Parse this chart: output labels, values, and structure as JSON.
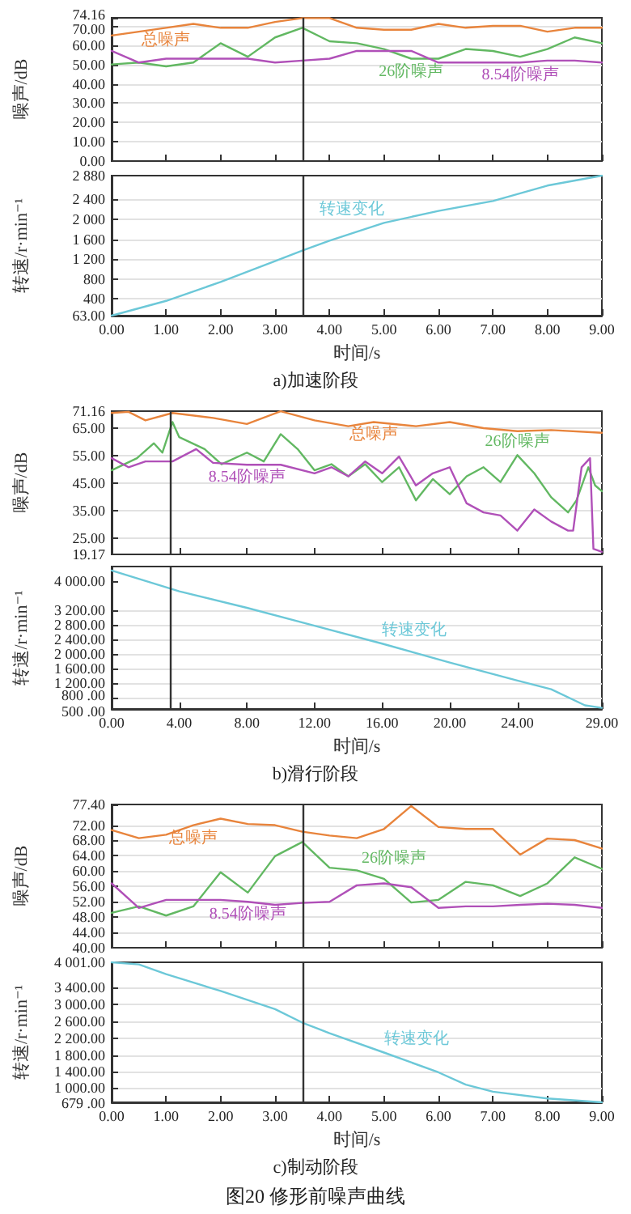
{
  "chart_data": [
    {
      "type": "line",
      "ylabel": "噪声/dB",
      "x": [
        0,
        0.5,
        1,
        1.5,
        2,
        2.5,
        3,
        3.5,
        4,
        4.5,
        5,
        5.5,
        6,
        6.5,
        7,
        7.5,
        8,
        8.5,
        9
      ],
      "xlim": [
        0,
        9
      ],
      "xticks": [
        0,
        1,
        2,
        3,
        4,
        5,
        6,
        7,
        8,
        9
      ],
      "ylim": [
        0,
        74.16
      ],
      "yticks": [
        {
          "value": 0,
          "label": "0.00"
        },
        {
          "value": 10,
          "label": "10.00"
        },
        {
          "value": 20,
          "label": "20.00"
        },
        {
          "value": 30,
          "label": "30.00"
        },
        {
          "value": 40,
          "label": "40.00"
        },
        {
          "value": 50,
          "label": "50.00"
        },
        {
          "value": 60,
          "label": "60.00"
        },
        {
          "value": 70,
          "label": "70.00"
        },
        74.16
      ],
      "tick_labels": "y",
      "grid": "y",
      "ref_lines": [
        {
          "axis": "x",
          "value": 3.5,
          "color": "#333333"
        }
      ],
      "series": [
        {
          "name": "总噪声",
          "color": "#e8843c",
          "values": [
            65,
            67,
            69,
            71,
            69,
            69,
            72,
            74,
            74,
            69,
            68,
            68,
            71,
            69,
            70,
            70,
            67,
            69,
            69
          ]
        },
        {
          "name": "26阶噪声",
          "color": "#62b862",
          "values": [
            50,
            51,
            49,
            51,
            61,
            54,
            64,
            69,
            62,
            61,
            58,
            53,
            53,
            58,
            57,
            54,
            58,
            64,
            61
          ]
        },
        {
          "name": "8.54阶噪声",
          "color": "#b050b8",
          "values": [
            57,
            51,
            53,
            53,
            53,
            53,
            51,
            52,
            53,
            57,
            57,
            57,
            51,
            51,
            51,
            51,
            52,
            52,
            51
          ]
        }
      ]
    },
    {
      "type": "line",
      "xlabel": "时间/s",
      "ylabel": "转速/r·min⁻¹",
      "x": [
        0,
        1,
        2,
        3,
        3.5,
        4,
        5,
        6,
        7,
        8,
        9
      ],
      "xlim": [
        0,
        9
      ],
      "xticks": [
        {
          "value": 0,
          "label": "0.00"
        },
        {
          "value": 1,
          "label": "1.00"
        },
        {
          "value": 2,
          "label": "2.00"
        },
        {
          "value": 3,
          "label": "3.00"
        },
        {
          "value": 4,
          "label": "4.00"
        },
        {
          "value": 5,
          "label": "5.00"
        },
        {
          "value": 6,
          "label": "6.00"
        },
        {
          "value": 7,
          "label": "7.00"
        },
        {
          "value": 8,
          "label": "8.00"
        },
        {
          "value": 9,
          "label": "9.00"
        }
      ],
      "ylim": [
        63,
        2880
      ],
      "yticks": [
        {
          "value": 63,
          "label": "63.00"
        },
        400,
        800,
        {
          "value": 1200,
          "label": "1 200"
        },
        {
          "value": 1600,
          "label": "1 600"
        },
        {
          "value": 2000,
          "label": "2 000"
        },
        {
          "value": 2400,
          "label": "2 400"
        },
        {
          "value": 2880,
          "label": "2 880"
        }
      ],
      "grid": "y",
      "ref_lines": [
        {
          "axis": "x",
          "value": 3.5,
          "color": "#333333"
        }
      ],
      "annotations": [
        "a)加速阶段"
      ],
      "series": [
        {
          "name": "转速变化",
          "color": "#6cc8d8",
          "values": [
            63,
            360,
            740,
            1160,
            1370,
            1570,
            1930,
            2170,
            2370,
            2680,
            2880
          ]
        }
      ]
    },
    {
      "type": "line",
      "ylabel": "噪声/dB",
      "xlim": [
        0,
        29
      ],
      "xticks": [
        0,
        4,
        8,
        12,
        16,
        20,
        24,
        29
      ],
      "ylim": [
        19.17,
        71.16
      ],
      "yticks": [
        19.17,
        {
          "value": 25,
          "label": "25.00"
        },
        {
          "value": 35,
          "label": "35.00"
        },
        {
          "value": 45,
          "label": "45.00"
        },
        {
          "value": 55,
          "label": "55.00"
        },
        {
          "value": 65,
          "label": "65.00"
        },
        71.16
      ],
      "tick_labels": "y",
      "grid": "y",
      "ref_lines": [
        {
          "axis": "x",
          "value": 3.5,
          "color": "#333333"
        }
      ],
      "series": [
        {
          "name": "总噪声",
          "color": "#e8843c",
          "x": [
            0,
            1,
            2,
            3.6,
            6,
            8,
            10,
            12,
            14,
            15.5,
            18,
            20,
            22,
            24,
            26,
            29
          ],
          "values": [
            70.5,
            70.9,
            67.8,
            70.5,
            68.7,
            66.5,
            71.1,
            67.8,
            65.7,
            67.2,
            65.7,
            67.2,
            65,
            63.9,
            64.3,
            63.3
          ]
        },
        {
          "name": "26阶噪声",
          "color": "#62b862",
          "x": [
            0,
            1.5,
            2.5,
            3,
            3.6,
            4,
            5.5,
            6.5,
            8,
            9,
            10,
            11,
            12,
            13,
            14,
            15,
            16,
            17,
            18,
            19,
            20,
            21,
            22,
            23,
            24,
            25,
            26,
            27,
            27.5,
            28.2,
            28.6,
            29
          ],
          "values": [
            49.7,
            54.1,
            59.5,
            56.1,
            67.2,
            61.7,
            57.4,
            51.9,
            56.1,
            52.9,
            62.8,
            57.4,
            49.7,
            51.9,
            47.5,
            51.9,
            45.4,
            50.8,
            38.8,
            46.5,
            41,
            47.5,
            50.8,
            45.4,
            55.2,
            48.6,
            39.9,
            34.4,
            38.8,
            50.8,
            44.2,
            42.1
          ]
        },
        {
          "name": "8.54阶噪声",
          "color": "#b050b8",
          "x": [
            0,
            1,
            2,
            3.6,
            5,
            6,
            8,
            10,
            12,
            13,
            14,
            15,
            16,
            17,
            18,
            19,
            20,
            21,
            22,
            23,
            24,
            25,
            26,
            27,
            27.3,
            27.8,
            28.3,
            28.5,
            29
          ],
          "values": [
            54.1,
            50.8,
            52.9,
            52.9,
            57.4,
            52.4,
            51.7,
            51.7,
            48.6,
            50.8,
            47.5,
            52.9,
            48.6,
            54.7,
            44.2,
            48.6,
            50.8,
            37.7,
            34.4,
            33.3,
            27.8,
            35.5,
            31.1,
            27.8,
            27.8,
            50.8,
            54.1,
            21.2,
            20.1
          ]
        }
      ]
    },
    {
      "type": "line",
      "xlabel": "时间/s",
      "ylabel": "转速/r·min⁻¹",
      "x": [
        0,
        4,
        8,
        12,
        16,
        20,
        24,
        26,
        28,
        29
      ],
      "xlim": [
        0,
        29
      ],
      "xticks": [
        {
          "value": 0,
          "label": "0.00"
        },
        {
          "value": 4,
          "label": "4.00"
        },
        {
          "value": 8,
          "label": "8.00"
        },
        {
          "value": 12,
          "label": "12.00"
        },
        {
          "value": 16,
          "label": "16.00"
        },
        {
          "value": 20,
          "label": "20.00"
        },
        {
          "value": 24,
          "label": "24.00"
        },
        {
          "value": 29,
          "label": "29.00"
        }
      ],
      "ylim": [
        500,
        4400
      ],
      "yticks": [
        {
          "value": 500,
          "label": "500 .00"
        },
        {
          "value": 800,
          "label": "800 .00"
        },
        {
          "value": 1200,
          "label": "1 200.00"
        },
        {
          "value": 1600,
          "label": "1 600.00"
        },
        {
          "value": 2000,
          "label": "2 000.00"
        },
        {
          "value": 2400,
          "label": "2 400.00"
        },
        {
          "value": 2800,
          "label": "2 800.00"
        },
        {
          "value": 3200,
          "label": "3 200.00"
        },
        {
          "value": 4000,
          "label": "4 000.00"
        }
      ],
      "grid": "y",
      "ref_lines": [
        {
          "axis": "x",
          "value": 3.5,
          "color": "#333333"
        }
      ],
      "annotations": [
        "b)滑行阶段"
      ],
      "series": [
        {
          "name": "转速变化",
          "color": "#6cc8d8",
          "values": [
            4290,
            3720,
            3270,
            2780,
            2290,
            1770,
            1280,
            1040,
            600,
            530
          ]
        }
      ]
    },
    {
      "type": "line",
      "ylabel": "噪声/dB",
      "x": [
        0,
        0.5,
        1,
        1.5,
        2,
        2.5,
        3,
        3.5,
        4,
        4.5,
        5,
        5.5,
        6,
        6.5,
        7,
        7.5,
        8,
        8.5,
        9
      ],
      "xlim": [
        0,
        9
      ],
      "xticks": [
        0,
        1,
        2,
        3,
        4,
        5,
        6,
        7,
        8,
        9
      ],
      "ylim": [
        40,
        77.4
      ],
      "yticks": [
        {
          "value": 40,
          "label": "40.00"
        },
        {
          "value": 44,
          "label": "44.00"
        },
        {
          "value": 48,
          "label": "48.00"
        },
        {
          "value": 52,
          "label": "52.00"
        },
        {
          "value": 56,
          "label": "56.00"
        },
        {
          "value": 60,
          "label": "60.00"
        },
        {
          "value": 64,
          "label": "64.00"
        },
        {
          "value": 68,
          "label": "68.00"
        },
        {
          "value": 72,
          "label": "72.00"
        },
        {
          "value": 77.4,
          "label": "77.40"
        }
      ],
      "tick_labels": "y",
      "grid": "y",
      "ref_lines": [
        {
          "axis": "x",
          "value": 3.5,
          "color": "#333333"
        }
      ],
      "series": [
        {
          "name": "总噪声",
          "color": "#e8843c",
          "values": [
            70.7,
            68.6,
            69.5,
            72,
            73.7,
            72.3,
            72,
            70.3,
            69.3,
            68.6,
            71,
            77,
            71.5,
            71,
            71,
            64.3,
            68.5,
            68.1,
            65.9
          ]
        },
        {
          "name": "26阶噪声",
          "color": "#62b862",
          "values": [
            49.1,
            50.8,
            48.4,
            50.8,
            59.7,
            54.4,
            63.9,
            67.6,
            60.9,
            60.2,
            58,
            51.8,
            52.5,
            57.2,
            56.3,
            53.5,
            56.8,
            63.6,
            60.6
          ]
        },
        {
          "name": "8.54阶噪声",
          "color": "#b050b8",
          "values": [
            56.8,
            50.4,
            52.5,
            52.5,
            52.5,
            52,
            51.2,
            51.7,
            52,
            56.3,
            56.8,
            55.8,
            50.4,
            50.8,
            50.8,
            51.2,
            51.5,
            51.2,
            50.4
          ]
        }
      ]
    },
    {
      "type": "line",
      "xlabel": "时间/s",
      "ylabel": "转速/r·min⁻¹",
      "x": [
        0,
        0.5,
        1,
        2,
        3,
        3.5,
        4,
        5,
        6,
        6.5,
        7,
        8,
        9
      ],
      "xlim": [
        0,
        9
      ],
      "xticks": [
        {
          "value": 0,
          "label": "0.00"
        },
        {
          "value": 1,
          "label": "1.00"
        },
        {
          "value": 2,
          "label": "2.00"
        },
        {
          "value": 3,
          "label": "3.00"
        },
        {
          "value": 4,
          "label": "4.00"
        },
        {
          "value": 5,
          "label": "5.00"
        },
        {
          "value": 6,
          "label": "6.00"
        },
        {
          "value": 7,
          "label": "7.00"
        },
        {
          "value": 8,
          "label": "8.00"
        },
        {
          "value": 9,
          "label": "9.00"
        }
      ],
      "ylim": [
        679,
        4001
      ],
      "yticks": [
        {
          "value": 679,
          "label": "679 .00"
        },
        {
          "value": 1000,
          "label": "1 000.00"
        },
        {
          "value": 1400,
          "label": "1 400.00"
        },
        {
          "value": 1800,
          "label": "1 800.00"
        },
        {
          "value": 2200,
          "label": "2 200.00"
        },
        {
          "value": 2600,
          "label": "2 600.00"
        },
        {
          "value": 3000,
          "label": "3 000.00"
        },
        {
          "value": 3400,
          "label": "3 400.00"
        },
        {
          "value": 4001,
          "label": "4 001.00"
        }
      ],
      "grid": "y",
      "ref_lines": [
        {
          "axis": "x",
          "value": 3.5,
          "color": "#333333"
        }
      ],
      "annotations": [
        "c)制动阶段",
        "图20 修形前噪声曲线"
      ],
      "series": [
        {
          "name": "转速变化",
          "color": "#6cc8d8",
          "values": [
            4001,
            3950,
            3720,
            3320,
            2890,
            2570,
            2320,
            1860,
            1390,
            1100,
            930,
            770,
            679
          ]
        }
      ]
    }
  ]
}
